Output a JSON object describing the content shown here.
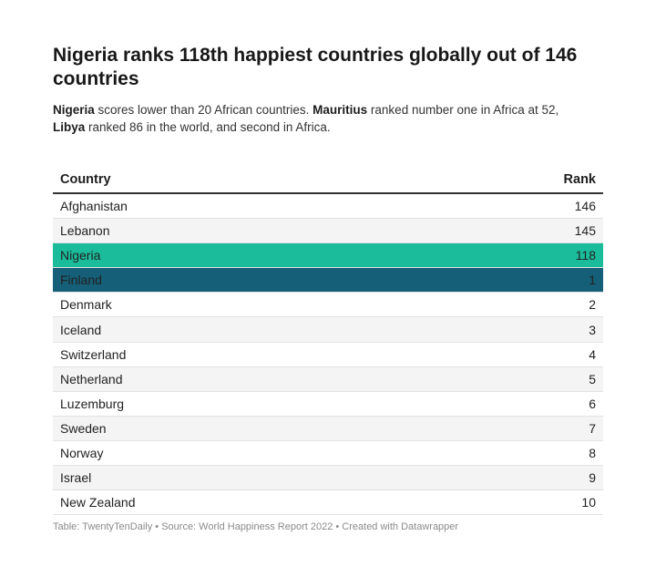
{
  "title": "Nigeria ranks 118th happiest countries globally out of 146 countries",
  "subtitle": {
    "part1_bold": "Nigeria",
    "part2": " scores lower than 20 African countries. ",
    "part3_bold": "Mauritius",
    "part4": " ranked number one in Africa at 52,",
    "part5_bold": "Libya",
    "part6": " ranked 86 in the world, and second in Africa."
  },
  "footer": "Table: TwentyTenDaily • Source: World Happiness Report 2022 • Created with Datawrapper",
  "colors": {
    "nigeria_highlight": "#1abc9c",
    "finland_highlight": "#155f78"
  },
  "chart_data": {
    "type": "table",
    "columns": [
      "Country",
      "Rank"
    ],
    "rows": [
      {
        "country": "Afghanistan",
        "rank": 146
      },
      {
        "country": "Lebanon",
        "rank": 145
      },
      {
        "country": "Nigeria",
        "rank": 118,
        "highlight": "nigeria_highlight"
      },
      {
        "country": "Finland",
        "rank": 1,
        "highlight": "finland_highlight"
      },
      {
        "country": "Denmark",
        "rank": 2
      },
      {
        "country": "Iceland",
        "rank": 3
      },
      {
        "country": "Switzerland",
        "rank": 4
      },
      {
        "country": "Netherland",
        "rank": 5
      },
      {
        "country": "Luzemburg",
        "rank": 6
      },
      {
        "country": "Sweden",
        "rank": 7
      },
      {
        "country": "Norway",
        "rank": 8
      },
      {
        "country": "Israel",
        "rank": 9
      },
      {
        "country": "New Zealand",
        "rank": 10
      }
    ]
  }
}
